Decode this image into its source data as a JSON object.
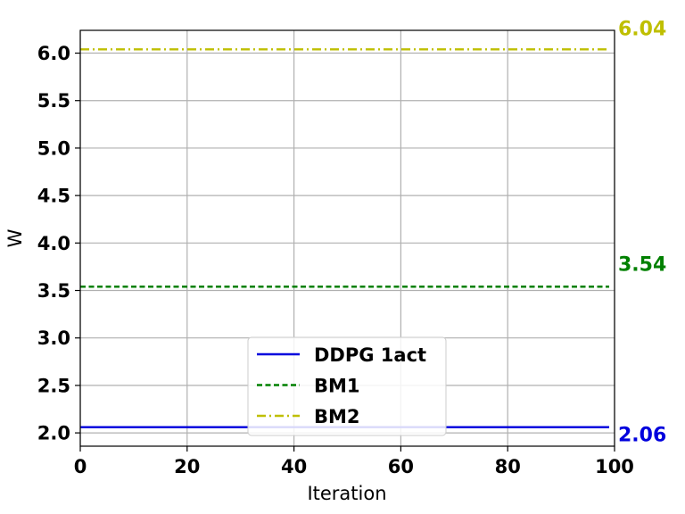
{
  "chart_data": {
    "type": "line",
    "title": "",
    "xlabel": "Iteration",
    "ylabel": "W",
    "xlim": [
      0,
      100
    ],
    "ylim": [
      1.86,
      6.24
    ],
    "x_ticks": [
      "0",
      "20",
      "40",
      "60",
      "80",
      "100"
    ],
    "y_ticks": [
      "2.0",
      "2.5",
      "3.0",
      "3.5",
      "4.0",
      "4.5",
      "5.0",
      "5.5",
      "6.0"
    ],
    "grid": true,
    "legend_position": "lower-center",
    "series": [
      {
        "name": "DDPG 1act",
        "x": [
          0,
          99
        ],
        "values": [
          2.06,
          2.06
        ],
        "color": "#0000dd",
        "style": "solid",
        "end_label": "2.06"
      },
      {
        "name": "BM1",
        "x": [
          0,
          99
        ],
        "values": [
          3.54,
          3.54
        ],
        "color": "#008000",
        "style": "dashed",
        "end_label": "3.54"
      },
      {
        "name": "BM2",
        "x": [
          0,
          99
        ],
        "values": [
          6.04,
          6.04
        ],
        "color": "#bfbf00",
        "style": "dashdot",
        "end_label": "6.04"
      }
    ]
  }
}
